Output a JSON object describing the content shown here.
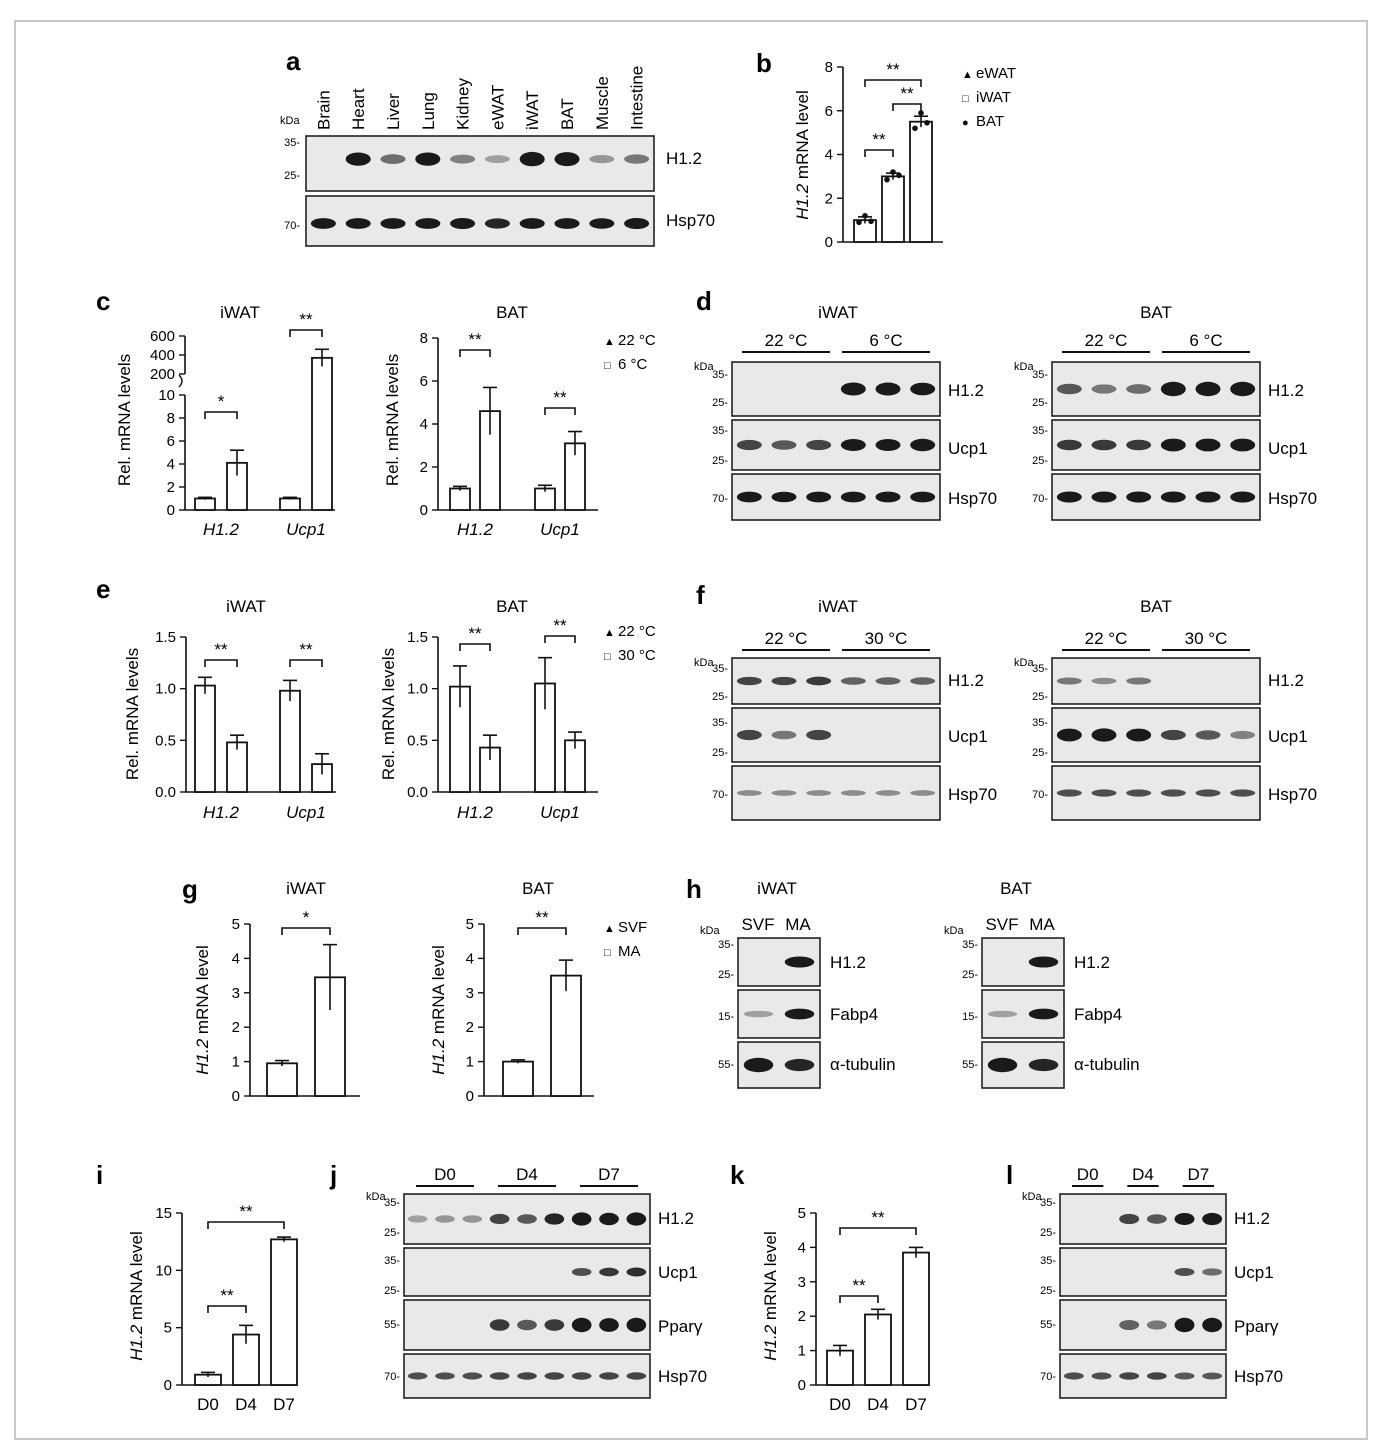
{
  "panels": {
    "a": {
      "label": "a",
      "kda": "kDa",
      "lanes": [
        "Brain",
        "Heart",
        "Liver",
        "Lung",
        "Kidney",
        "eWAT",
        "iWAT",
        "BAT",
        "Muscle",
        "Intestine"
      ],
      "markers": [
        "35",
        "25",
        "70"
      ],
      "rows": [
        "H1.2",
        "Hsp70"
      ],
      "band_intensity": {
        "H1.2": [
          0.0,
          0.85,
          0.35,
          0.85,
          0.25,
          0.1,
          1.0,
          0.95,
          0.15,
          0.3
        ],
        "Hsp70": [
          0.8,
          0.8,
          0.8,
          0.8,
          0.85,
          0.7,
          0.8,
          0.8,
          0.75,
          0.85
        ]
      }
    },
    "b": {
      "label": "b",
      "legend": [
        "eWAT",
        "iWAT",
        "BAT"
      ],
      "sig": [
        "**",
        "**",
        "**"
      ]
    },
    "c": {
      "label": "c",
      "titles": [
        "iWAT",
        "BAT"
      ],
      "legend": [
        "22 °C",
        "6 °C"
      ],
      "sig_iwat": [
        "*",
        "**"
      ],
      "sig_bat": [
        "**",
        "**"
      ],
      "upper_ticks": [
        "200",
        "400",
        "600"
      ]
    },
    "d": {
      "label": "d",
      "titles": [
        "iWAT",
        "BAT"
      ],
      "conditions": [
        "22 °C",
        "6 °C"
      ],
      "kda": "kDa",
      "rows": [
        "H1.2",
        "Ucp1",
        "Hsp70"
      ],
      "markers": [
        "35",
        "25",
        "35",
        "25",
        "70"
      ]
    },
    "e": {
      "label": "e",
      "titles": [
        "iWAT",
        "BAT"
      ],
      "legend": [
        "22 °C",
        "30 °C"
      ],
      "sig": [
        "**",
        "**",
        "**",
        "**"
      ]
    },
    "f": {
      "label": "f",
      "titles": [
        "iWAT",
        "BAT"
      ],
      "conditions": [
        "22 °C",
        "30 °C"
      ],
      "kda": "kDa",
      "rows": [
        "H1.2",
        "Ucp1",
        "Hsp70"
      ],
      "markers": [
        "35",
        "25",
        "35",
        "25",
        "70"
      ]
    },
    "g": {
      "label": "g",
      "titles": [
        "iWAT",
        "BAT"
      ],
      "legend": [
        "SVF",
        "MA"
      ],
      "sig": [
        "*",
        "**"
      ]
    },
    "h": {
      "label": "h",
      "titles": [
        "iWAT",
        "BAT"
      ],
      "lanes": [
        "SVF",
        "MA"
      ],
      "kda": "kDa",
      "rows": [
        "H1.2",
        "Fabp4",
        "α-tubulin"
      ],
      "markers": [
        "35",
        "25",
        "15",
        "55"
      ]
    },
    "i": {
      "label": "i",
      "sig": [
        "**",
        "**"
      ]
    },
    "j": {
      "label": "j",
      "kda": "kDa",
      "days": [
        "D0",
        "D4",
        "D7"
      ],
      "rows": [
        "H1.2",
        "Ucp1",
        "Pparγ",
        "Hsp70"
      ],
      "markers": [
        "35",
        "25",
        "35",
        "25",
        "55",
        "70"
      ]
    },
    "k": {
      "label": "k",
      "sig": [
        "**",
        "**"
      ]
    },
    "l": {
      "label": "l",
      "kda": "kDa",
      "days": [
        "D0",
        "D4",
        "D7"
      ],
      "rows": [
        "H1.2",
        "Ucp1",
        "Pparγ",
        "Hsp70"
      ],
      "markers": [
        "35",
        "25",
        "35",
        "25",
        "55",
        "70"
      ]
    }
  },
  "genes": {
    "h12": "H1.2",
    "ucp1": "Ucp1"
  },
  "ylabels": {
    "h12_mrna": "H1.2 mRNA level",
    "h12_mrna_gene": "H1.2",
    "h12_mrna_rest": " mRNA level",
    "rel": "Rel. mRNA levels"
  },
  "chart_data": [
    {
      "panel": "b",
      "type": "bar",
      "categories": [
        "eWAT",
        "iWAT",
        "BAT"
      ],
      "values": [
        1.0,
        3.0,
        5.5
      ],
      "errors": [
        0.15,
        0.15,
        0.25
      ],
      "points": [
        [
          0.9,
          1.2,
          0.95
        ],
        [
          2.85,
          3.2,
          3.05
        ],
        [
          5.2,
          5.9,
          5.45
        ]
      ],
      "ylabel": "H1.2 mRNA level",
      "ylim": [
        0,
        8
      ],
      "yticks": [
        0,
        2,
        4,
        6,
        8
      ]
    },
    {
      "panel": "c-iWAT",
      "type": "bar",
      "categories": [
        "H1.2",
        "Ucp1"
      ],
      "series": [
        {
          "name": "22 °C",
          "values": [
            1.0,
            1.0
          ],
          "errors": [
            0.1,
            0.1
          ]
        },
        {
          "name": "6 °C",
          "values": [
            4.1,
            370
          ],
          "errors": [
            1.1,
            90
          ]
        }
      ],
      "ylabel": "Rel. mRNA levels",
      "ylim": [
        0,
        600
      ],
      "yticks_lower": [
        0,
        2,
        4,
        6,
        8,
        10
      ],
      "yticks_upper": [
        200,
        400,
        600
      ],
      "axis_break": [
        10,
        200
      ]
    },
    {
      "panel": "c-BAT",
      "type": "bar",
      "categories": [
        "H1.2",
        "Ucp1"
      ],
      "series": [
        {
          "name": "22 °C",
          "values": [
            1.0,
            1.0
          ],
          "errors": [
            0.1,
            0.15
          ]
        },
        {
          "name": "6 °C",
          "values": [
            4.6,
            3.1
          ],
          "errors": [
            1.1,
            0.55
          ]
        }
      ],
      "ylabel": "Rel. mRNA levels",
      "ylim": [
        0,
        8
      ],
      "yticks": [
        0,
        2,
        4,
        6,
        8
      ]
    },
    {
      "panel": "e-iWAT",
      "type": "bar",
      "categories": [
        "H1.2",
        "Ucp1"
      ],
      "series": [
        {
          "name": "22 °C",
          "values": [
            1.03,
            0.98
          ],
          "errors": [
            0.08,
            0.1
          ]
        },
        {
          "name": "30 °C",
          "values": [
            0.48,
            0.27
          ],
          "errors": [
            0.07,
            0.1
          ]
        }
      ],
      "ylabel": "Rel. mRNA levels",
      "ylim": [
        0,
        1.5
      ],
      "yticks": [
        0,
        0.5,
        1.0,
        1.5
      ]
    },
    {
      "panel": "e-BAT",
      "type": "bar",
      "categories": [
        "H1.2",
        "Ucp1"
      ],
      "series": [
        {
          "name": "22 °C",
          "values": [
            1.02,
            1.05
          ],
          "errors": [
            0.2,
            0.25
          ]
        },
        {
          "name": "30 °C",
          "values": [
            0.43,
            0.5
          ],
          "errors": [
            0.12,
            0.08
          ]
        }
      ],
      "ylabel": "Rel. mRNA levels",
      "ylim": [
        0,
        1.5
      ],
      "yticks": [
        0,
        0.5,
        1.0,
        1.5
      ]
    },
    {
      "panel": "g-iWAT",
      "type": "bar",
      "categories": [
        "SVF",
        "MA"
      ],
      "values": [
        0.95,
        3.45
      ],
      "errors": [
        0.08,
        0.95
      ],
      "ylabel": "H1.2 mRNA level",
      "ylim": [
        0,
        5
      ],
      "yticks": [
        0,
        1,
        2,
        3,
        4,
        5
      ]
    },
    {
      "panel": "g-BAT",
      "type": "bar",
      "categories": [
        "SVF",
        "MA"
      ],
      "values": [
        1.0,
        3.5
      ],
      "errors": [
        0.05,
        0.45
      ],
      "ylabel": "H1.2 mRNA level",
      "ylim": [
        0,
        5
      ],
      "yticks": [
        0,
        1,
        2,
        3,
        4,
        5
      ]
    },
    {
      "panel": "i",
      "type": "bar",
      "categories": [
        "D0",
        "D4",
        "D7"
      ],
      "values": [
        0.9,
        4.4,
        12.7
      ],
      "errors": [
        0.2,
        0.8,
        0.2
      ],
      "ylabel": "H1.2 mRNA level",
      "ylim": [
        0,
        15
      ],
      "yticks": [
        0,
        5,
        10,
        15
      ]
    },
    {
      "panel": "k",
      "type": "bar",
      "categories": [
        "D0",
        "D4",
        "D7"
      ],
      "values": [
        1.0,
        2.05,
        3.85
      ],
      "errors": [
        0.15,
        0.15,
        0.15
      ],
      "ylabel": "H1.2 mRNA level",
      "ylim": [
        0,
        5
      ],
      "yticks": [
        0,
        1,
        2,
        3,
        4,
        5
      ]
    }
  ]
}
